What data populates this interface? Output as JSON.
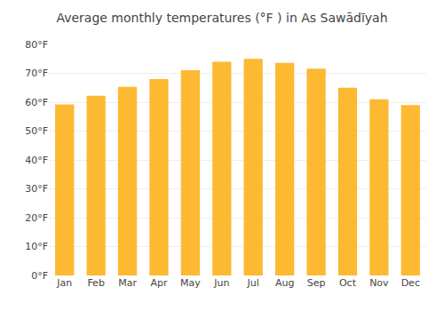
{
  "chart_data": {
    "type": "bar",
    "title": "Average monthly temperatures (°F ) in As Sawādīyah",
    "categories": [
      "Jan",
      "Feb",
      "Mar",
      "Apr",
      "May",
      "Jun",
      "Jul",
      "Aug",
      "Sep",
      "Oct",
      "Nov",
      "Dec"
    ],
    "values": [
      59.2,
      62.2,
      65.3,
      68.0,
      71.1,
      74.0,
      75.0,
      73.6,
      71.6,
      65.0,
      61.0,
      59.0
    ],
    "color": "#FDB931",
    "ylim": [
      0,
      80
    ],
    "yticks": [
      {
        "value": 0,
        "label": "0°F"
      },
      {
        "value": 10,
        "label": "10°F"
      },
      {
        "value": 20,
        "label": "20°F"
      },
      {
        "value": 30,
        "label": "30°F"
      },
      {
        "value": 40,
        "label": "40°F"
      },
      {
        "value": 50,
        "label": "50°F"
      },
      {
        "value": 60,
        "label": "60°F"
      },
      {
        "value": 70,
        "label": "70°F"
      },
      {
        "value": 80,
        "label": "80°F"
      }
    ],
    "grid": true
  }
}
